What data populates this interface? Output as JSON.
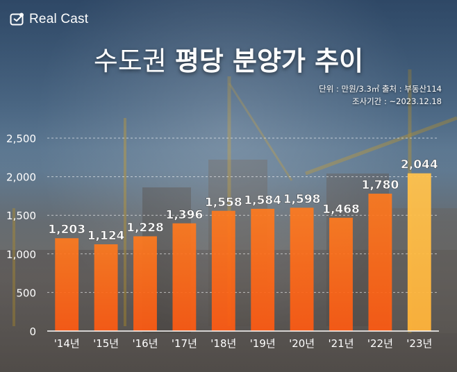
{
  "brand": {
    "name": "Real Cast",
    "icon": "realcast-logo-icon"
  },
  "title": {
    "light": "수도권",
    "bold": "평당 분양가 추이"
  },
  "meta": {
    "line1": "단위 : 만원/3.3㎡ 출처 : 부동산114",
    "line2": "조사기간 : ~2023.12.18"
  },
  "colors": {
    "bar_start": "#ff6a1a",
    "bar_mid": "#ff8a2a",
    "bar_end": "#ffc04a",
    "axis": "#ffffff"
  },
  "chart_data": {
    "type": "bar",
    "categories": [
      "'14년",
      "'15년",
      "'16년",
      "'17년",
      "'18년",
      "'19년",
      "'20년",
      "'21년",
      "'22년",
      "'23년"
    ],
    "values": [
      1203,
      1124,
      1228,
      1396,
      1558,
      1584,
      1598,
      1468,
      1780,
      2044
    ],
    "value_labels": [
      "1,203",
      "1,124",
      "1,228",
      "1,396",
      "1,558",
      "1,584",
      "1,598",
      "1,468",
      "1,780",
      "2,044"
    ],
    "yticks": [
      0,
      500,
      1000,
      1500,
      2000,
      2500
    ],
    "ytick_labels": [
      "0",
      "500",
      "1,000",
      "1,500",
      "2,000",
      "2,500"
    ],
    "ylim": [
      0,
      2500
    ],
    "grid": true,
    "xlabel": "",
    "ylabel": ""
  }
}
